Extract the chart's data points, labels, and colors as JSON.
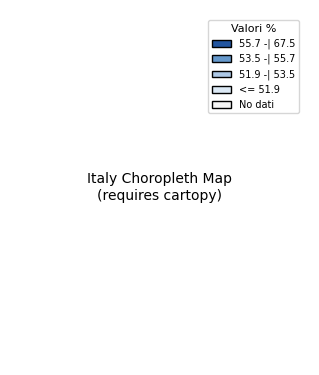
{
  "title": "",
  "legend_title": "Valori %",
  "legend_entries": [
    {
      "label": "55.7 -| 67.5",
      "color": "#2255a0"
    },
    {
      "label": "53.5 -| 55.7",
      "color": "#6699cc"
    },
    {
      "label": "51.9 -| 53.5",
      "color": "#adc8e6"
    },
    {
      "label": "<= 51.9",
      "color": "#dce9f5"
    },
    {
      "label": "No dati",
      "color": "#f5f5f5"
    }
  ],
  "region_colors": {
    "Valle d'Aosta": "#dce9f5",
    "Piemonte": "#6699cc",
    "Liguria": "#2255a0",
    "Lombardia": "#adc8e6",
    "Trentino-Alto Adige": "#adc8e6",
    "Veneto": "#adc8e6",
    "Friuli-Venezia Giulia": "#2255a0",
    "Emilia-Romagna": "#2255a0",
    "Toscana": "#6699cc",
    "Umbria": "#2255a0",
    "Marche": "#f5f5f5",
    "Lazio": "#2255a0",
    "Abruzzo": "#f5f5f5",
    "Molise": "#f5f5f5",
    "Campania": "#adc8e6",
    "Puglia": "#6699cc",
    "Basilicata": "#adc8e6",
    "Calabria": "#2255a0",
    "Sicilia": "#adc8e6",
    "Sardegna": "#6699cc"
  },
  "background_color": "#ffffff",
  "border_color": "#000000",
  "border_width": 0.5,
  "figsize": [
    3.19,
    3.75
  ],
  "dpi": 100
}
